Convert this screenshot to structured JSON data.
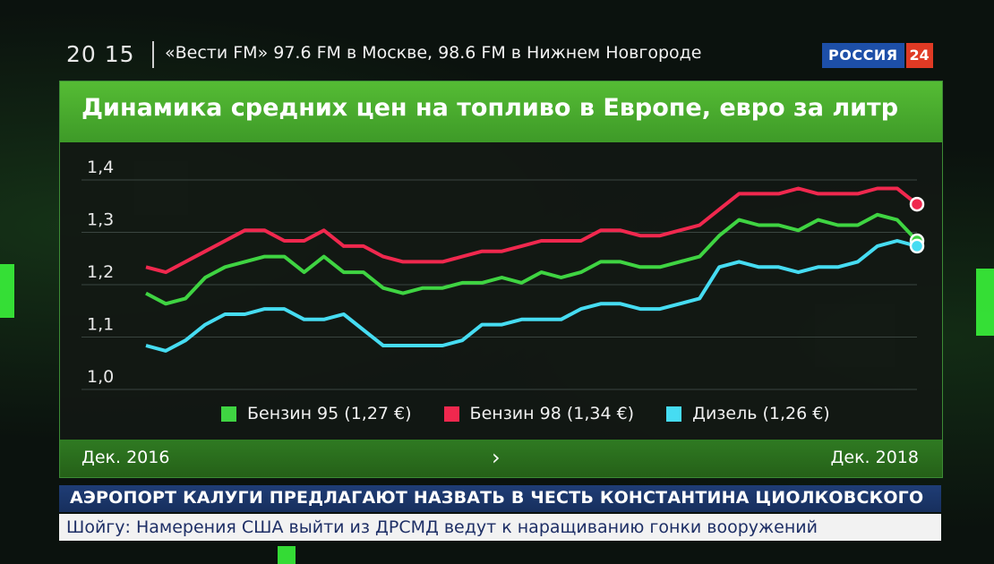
{
  "header": {
    "clock": "20 15",
    "ticker": "«Вести FM» 97.6 FM в Москве, 98.6 FM в Нижнем Новгороде",
    "channel": "РОССИЯ",
    "channel_number": "24"
  },
  "chart_data": {
    "type": "line",
    "title": "Динамика средних цен на топливо в Европе, евро за литр",
    "ylim": [
      1.0,
      1.4
    ],
    "yticks": [
      "1,4",
      "1,3",
      "1,2",
      "1,1",
      "1,0"
    ],
    "grid": true,
    "legend_position": "bottom",
    "x_start_label": "Дек. 2016",
    "x_end_label": "Дек. 2018",
    "series": [
      {
        "name": "Бензин 95 (1,27 €)",
        "color": "#3fd442",
        "values": [
          1.17,
          1.15,
          1.16,
          1.2,
          1.22,
          1.23,
          1.24,
          1.24,
          1.21,
          1.24,
          1.21,
          1.21,
          1.18,
          1.17,
          1.18,
          1.18,
          1.19,
          1.19,
          1.2,
          1.19,
          1.21,
          1.2,
          1.21,
          1.23,
          1.23,
          1.22,
          1.22,
          1.23,
          1.24,
          1.28,
          1.31,
          1.3,
          1.3,
          1.29,
          1.31,
          1.3,
          1.3,
          1.32,
          1.31,
          1.27
        ]
      },
      {
        "name": "Бензин 98 (1,34 €)",
        "color": "#f0284e",
        "values": [
          1.22,
          1.21,
          1.23,
          1.25,
          1.27,
          1.29,
          1.29,
          1.27,
          1.27,
          1.29,
          1.26,
          1.26,
          1.24,
          1.23,
          1.23,
          1.23,
          1.24,
          1.25,
          1.25,
          1.26,
          1.27,
          1.27,
          1.27,
          1.29,
          1.29,
          1.28,
          1.28,
          1.29,
          1.3,
          1.33,
          1.36,
          1.36,
          1.36,
          1.37,
          1.36,
          1.36,
          1.36,
          1.37,
          1.37,
          1.34
        ]
      },
      {
        "name": "Дизель (1,26 €)",
        "color": "#46dcf2",
        "values": [
          1.07,
          1.06,
          1.08,
          1.11,
          1.13,
          1.13,
          1.14,
          1.14,
          1.12,
          1.12,
          1.13,
          1.1,
          1.07,
          1.07,
          1.07,
          1.07,
          1.08,
          1.11,
          1.11,
          1.12,
          1.12,
          1.12,
          1.14,
          1.15,
          1.15,
          1.14,
          1.14,
          1.15,
          1.16,
          1.22,
          1.23,
          1.22,
          1.22,
          1.21,
          1.22,
          1.22,
          1.23,
          1.26,
          1.27,
          1.26
        ]
      }
    ]
  },
  "news": {
    "headline": "АЭРОПОРТ КАЛУГИ ПРЕДЛАГАЮТ НАЗВАТЬ В ЧЕСТЬ КОНСТАНТИНА ЦИОЛКОВСКОГО",
    "subline": "Шойгу: Намерения США выйти из ДРСМД ведут к наращиванию гонки вооружений"
  }
}
